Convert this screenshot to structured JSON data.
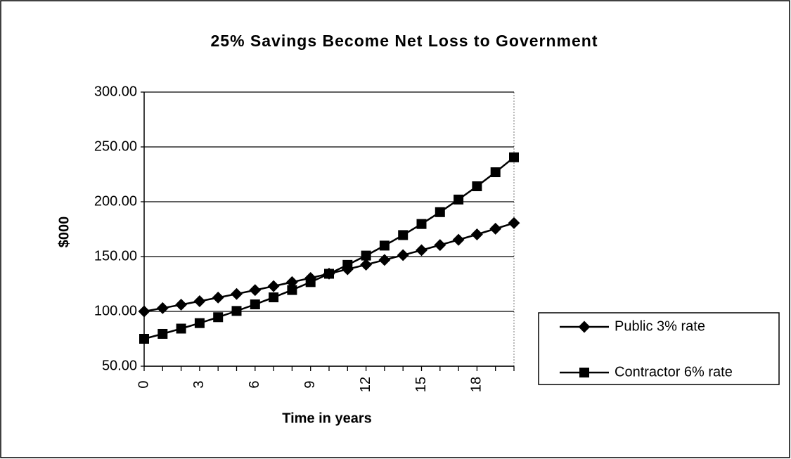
{
  "chart_data": {
    "type": "line",
    "title": "25% Savings Become Net Loss to Government",
    "x_label": "Time in years",
    "y_label": "$000",
    "x": [
      0,
      1,
      2,
      3,
      4,
      5,
      6,
      7,
      8,
      9,
      10,
      11,
      12,
      13,
      14,
      15,
      16,
      17,
      18,
      19,
      20
    ],
    "xlim": [
      0,
      20
    ],
    "xticks": [
      0,
      3,
      6,
      9,
      12,
      15,
      18
    ],
    "ylim": [
      50,
      300
    ],
    "yticks": [
      {
        "value": 50,
        "label": "50.00"
      },
      {
        "value": 100,
        "label": "100.00"
      },
      {
        "value": 150,
        "label": "150.00"
      },
      {
        "value": 200,
        "label": "200.00"
      },
      {
        "value": 250,
        "label": "250.00"
      },
      {
        "value": 300,
        "label": "300.00"
      }
    ],
    "grid": true,
    "legend": "right",
    "series": [
      {
        "name": "Public 3% rate",
        "color": "#000000",
        "marker": "diamond",
        "values": [
          100,
          103,
          106.1,
          109.3,
          112.6,
          115.9,
          119.4,
          123,
          126.7,
          130.5,
          134.4,
          138.4,
          142.6,
          146.9,
          151.3,
          155.8,
          160.5,
          165.3,
          170.2,
          175.4,
          180.6
        ]
      },
      {
        "name": "Contractor 6% rate",
        "color": "#000000",
        "marker": "square",
        "values": [
          75,
          79.5,
          84.3,
          89.3,
          94.7,
          100.4,
          106.4,
          112.8,
          119.5,
          126.7,
          134.3,
          142.4,
          150.9,
          160,
          169.6,
          179.7,
          190.5,
          202,
          214.1,
          226.9,
          240.5
        ]
      }
    ]
  }
}
